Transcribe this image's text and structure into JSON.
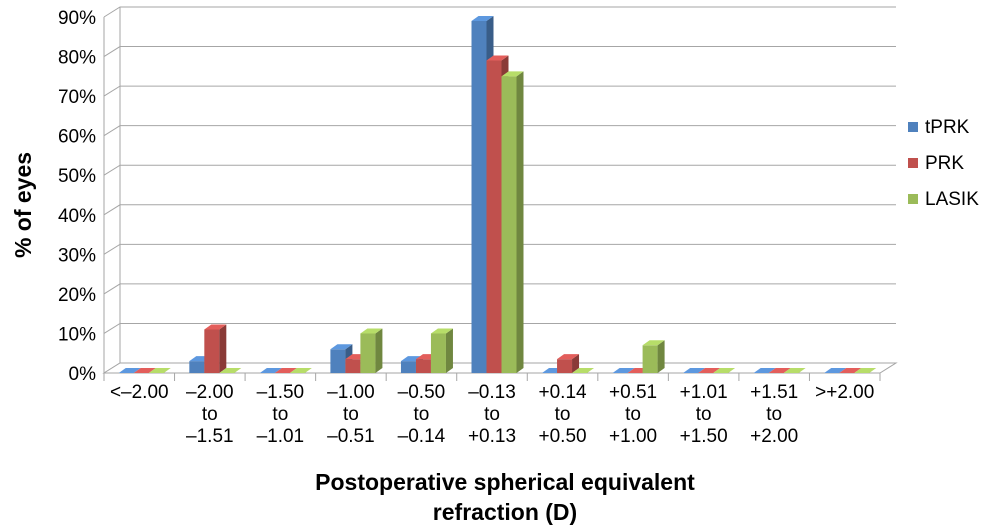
{
  "chart_data": {
    "type": "bar",
    "title": "",
    "xlabel": [
      "Postoperative spherical equivalent",
      "refraction (D)"
    ],
    "ylabel": "% of eyes",
    "ylim": [
      0,
      90
    ],
    "yticks": [
      "0%",
      "10%",
      "20%",
      "30%",
      "40%",
      "50%",
      "60%",
      "70%",
      "80%",
      "90%"
    ],
    "categories": [
      [
        "<–2.00"
      ],
      [
        "–2.00",
        "to",
        "–1.51"
      ],
      [
        "–1.50",
        "to",
        "–1.01"
      ],
      [
        "–1.00",
        "to",
        "–0.51"
      ],
      [
        "–0.50",
        "to",
        "–0.14"
      ],
      [
        "–0.13",
        "to",
        "+0.13"
      ],
      [
        "+0.14",
        "to",
        "+0.50"
      ],
      [
        "+0.51",
        "to",
        "+1.00"
      ],
      [
        "+1.01",
        "to",
        "+1.50"
      ],
      [
        "+1.51",
        "to",
        "+2.00"
      ],
      [
        ">+2.00"
      ]
    ],
    "series": [
      {
        "name": "tPRK",
        "color": "#4f81bd",
        "values": [
          0,
          3,
          0,
          6,
          3,
          89,
          0,
          0,
          0,
          0,
          0
        ]
      },
      {
        "name": "PRK",
        "color": "#c0504d",
        "values": [
          0,
          11,
          0,
          3.5,
          3.5,
          79,
          3.5,
          0,
          0,
          0,
          0
        ]
      },
      {
        "name": "LASIK",
        "color": "#9bbb59",
        "values": [
          0,
          0,
          0,
          10,
          10,
          75,
          0,
          7,
          0,
          0,
          0
        ]
      }
    ],
    "grid": true,
    "legend_position": "right"
  }
}
